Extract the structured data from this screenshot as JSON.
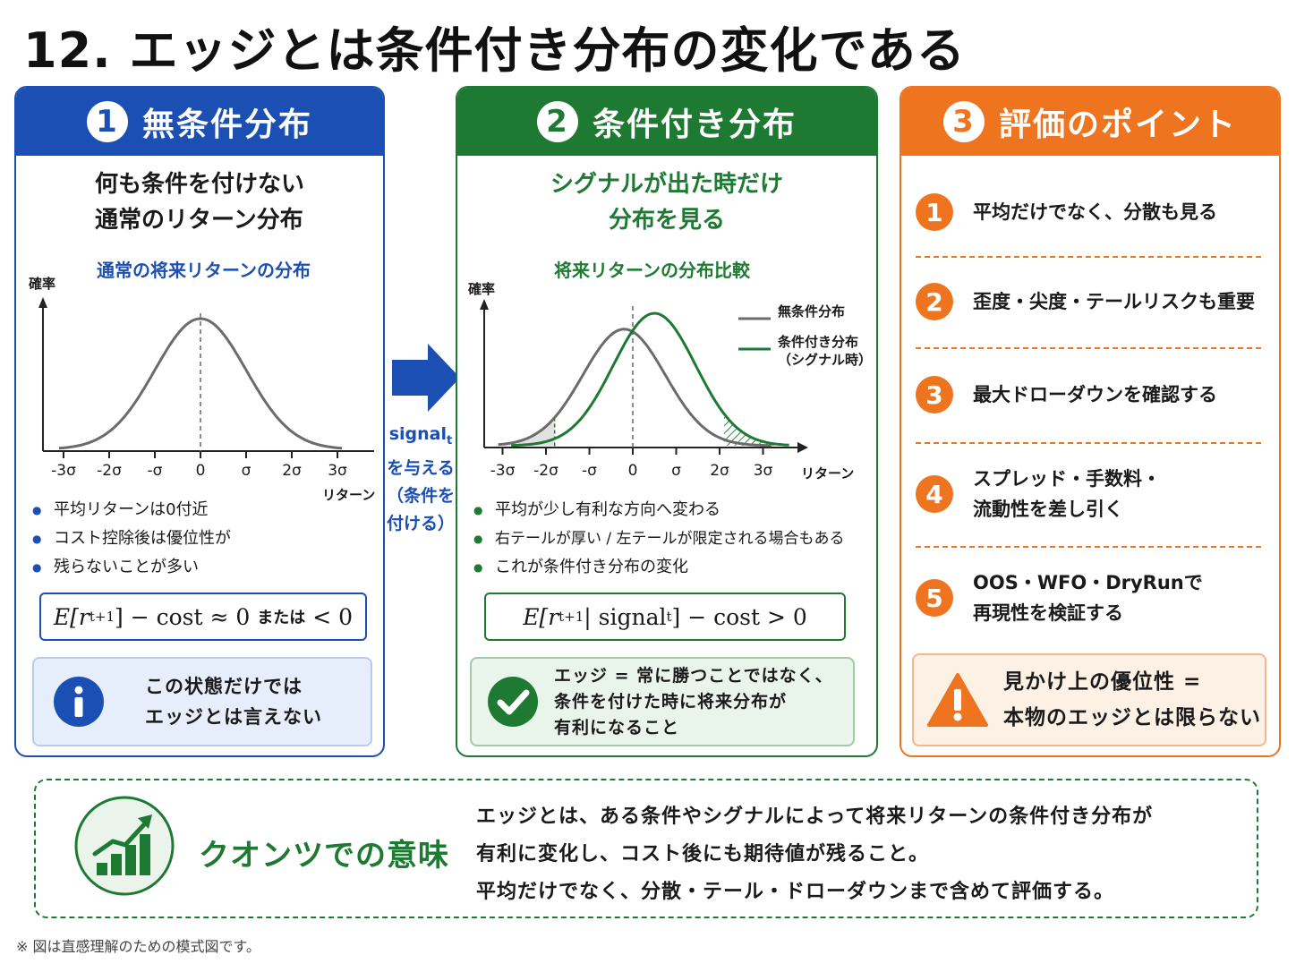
{
  "title": "12. エッジとは条件付き分布の変化である",
  "panel1": {
    "num": "1",
    "title": "無条件分布",
    "sub1": "何も条件を付けない",
    "sub2": "通常のリターン分布",
    "chart": {
      "title": "通常の将来リターンの分布",
      "ylabel": "確率",
      "xlabel": "リターン",
      "ticks": [
        "-3σ",
        "-2σ",
        "-σ",
        "0",
        "σ",
        "2σ",
        "3σ"
      ]
    },
    "bullets": [
      "平均リターンは0付近",
      "コスト控除後は優位性が",
      "残らないことが多い"
    ],
    "formula": {
      "left": "E[r",
      "sub": "t+1",
      "right": "] − cost ≈ 0",
      "mid": "または",
      "end": "< 0"
    },
    "note1": "この状態だけでは",
    "note2": "エッジとは言えない",
    "icon": "info-icon"
  },
  "arrow": {
    "line1": "signal",
    "line1_sub": "t",
    "line2": "を与える",
    "line3": "（条件を",
    "line4": "付ける）"
  },
  "panel2": {
    "num": "2",
    "title": "条件付き分布",
    "sub1": "シグナルが出た時だけ",
    "sub2": "分布を見る",
    "chart": {
      "title": "将来リターンの分布比較",
      "ylabel": "確率",
      "xlabel": "リターン",
      "ticks": [
        "-3σ",
        "-2σ",
        "-σ",
        "0",
        "σ",
        "2σ",
        "3σ"
      ],
      "legend1": "無条件分布",
      "legend2a": "条件付き分布",
      "legend2b": "（シグナル時）"
    },
    "bullets": [
      "平均が少し有利な方向へ変わる",
      "右テールが厚い / 左テールが限定される場合もある",
      "これが条件付き分布の変化"
    ],
    "formula": {
      "left": "E[r",
      "sub": "t+1",
      "mid": " | signal",
      "sub2": "t",
      "right": "] − cost > 0"
    },
    "note1": "エッジ = 常に勝つことではなく、",
    "note2": "条件を付けた時に将来分布が",
    "note3": "有利になること"
  },
  "panel3": {
    "num": "3",
    "title": "評価のポイント",
    "points": [
      {
        "num": "1",
        "l1": "平均だけでなく、分散も見る",
        "l2": ""
      },
      {
        "num": "2",
        "l1": "歪度・尖度・テールリスクも重要",
        "l2": ""
      },
      {
        "num": "3",
        "l1": "最大ドローダウンを確認する",
        "l2": ""
      },
      {
        "num": "4",
        "l1": "スプレッド・手数料・",
        "l2": "流動性を差し引く"
      },
      {
        "num": "5",
        "l1": "OOS・WFO・DryRunで",
        "l2": "再現性を検証する"
      }
    ],
    "warn1": "見かけ上の優位性 =",
    "warn2": "本物のエッジとは限らない"
  },
  "bottom": {
    "title": "クオンツでの意味",
    "line1": "エッジとは、ある条件やシグナルによって将来リターンの条件付き分布が",
    "line2": "有利に変化し、コスト後にも期待値が残ること。",
    "line3": "平均だけでなく、分散・テール・ドローダウンまで含めて評価する。"
  },
  "footnote": "※ 図は直感理解のための模式図です。",
  "colors": {
    "blue": "#1b4fb3",
    "green": "#1e7a33",
    "orange": "#ee7420"
  }
}
